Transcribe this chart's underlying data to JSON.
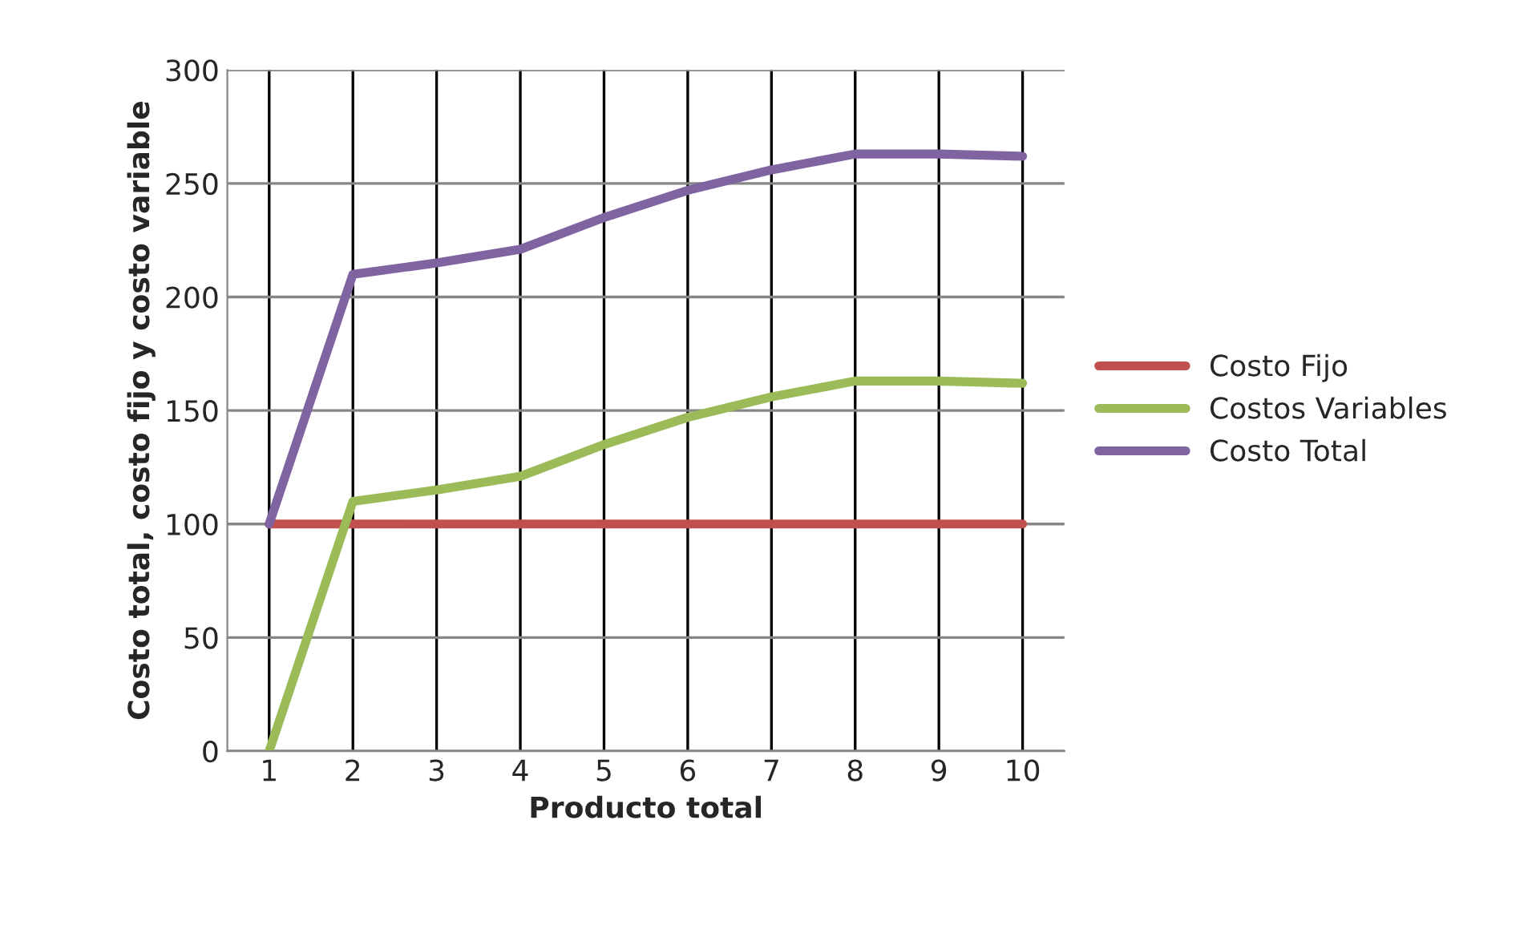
{
  "chart_data": {
    "type": "line",
    "xlabel": "Producto total",
    "ylabel": "Costo total, costo fijo y costo variable",
    "categories": [
      "1",
      "2",
      "3",
      "4",
      "5",
      "6",
      "7",
      "8",
      "9",
      "10"
    ],
    "series": [
      {
        "name": "Costo Fijo",
        "color": "#c0504d",
        "values": [
          100,
          100,
          100,
          100,
          100,
          100,
          100,
          100,
          100,
          100
        ]
      },
      {
        "name": "Costos Variables",
        "color": "#9bbb59",
        "values": [
          0,
          110,
          115,
          121,
          135,
          147,
          156,
          163,
          163,
          162
        ]
      },
      {
        "name": "Costo Total",
        "color": "#8064a2",
        "values": [
          100,
          210,
          215,
          221,
          235,
          247,
          256,
          263,
          263,
          262
        ]
      }
    ],
    "ylim": [
      0,
      300
    ],
    "yticks": [
      0,
      50,
      100,
      150,
      200,
      250,
      300
    ],
    "grid": true,
    "legend": "right",
    "marker": "none",
    "line_style": "solid"
  }
}
